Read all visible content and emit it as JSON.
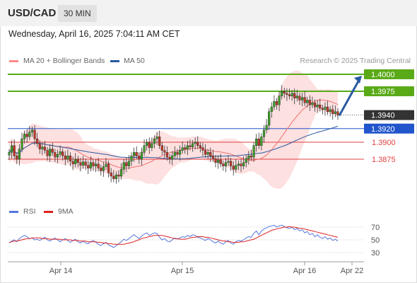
{
  "header": {
    "symbol": "USD/CAD",
    "timeframe": "30 MIN"
  },
  "timestamp": "Wednesday, April 16, 2025 7:04:11 AM CET",
  "legend": {
    "ma20": {
      "label": "MA 20 + Bollinger Bands",
      "color": "#ff8a8a"
    },
    "ma50": {
      "label": "MA 50",
      "color": "#2a5aa0"
    }
  },
  "credit": "Research © 2025 Trading Central",
  "rsi_legend": {
    "rsi": {
      "label": "RSI",
      "color": "#5577dd"
    },
    "ma9": {
      "label": "9MA",
      "color": "#e02020"
    }
  },
  "chart_data": [
    {
      "type": "candlestick",
      "ylim": [
        1.3793,
        1.4068
      ],
      "x_ticks": [
        "Apr 14",
        "Apr 15",
        "Apr 16",
        "Apr 22"
      ],
      "current_price": {
        "value": 1.394,
        "label": "1.3940",
        "color": "#333333"
      },
      "levels": [
        {
          "value": 1.4,
          "label": "1.4000",
          "kind": "target",
          "color": "#5aaa18"
        },
        {
          "value": 1.3975,
          "label": "1.3975",
          "kind": "target",
          "color": "#5aaa18"
        },
        {
          "value": 1.392,
          "label": "1.3920",
          "kind": "pivot",
          "color": "#2255cc"
        },
        {
          "value": 1.39,
          "label": "1.3900",
          "kind": "support",
          "color": "#e04040"
        },
        {
          "value": 1.3875,
          "label": "1.3875",
          "kind": "support",
          "color": "#e04040"
        }
      ],
      "scenario_arrow": {
        "from": 1.3939,
        "to": 1.4,
        "color": "#2a5aa0"
      },
      "series": [
        {
          "name": "Price",
          "close": [
            1.3885,
            1.3895,
            1.388,
            1.3875,
            1.389,
            1.3905,
            1.3912,
            1.3908,
            1.3915,
            1.3918,
            1.3905,
            1.3898,
            1.389,
            1.3893,
            1.3888,
            1.388,
            1.389,
            1.3885,
            1.3878,
            1.3882,
            1.3886,
            1.388,
            1.3875,
            1.388,
            1.3872,
            1.3868,
            1.3875,
            1.387,
            1.3866,
            1.3871,
            1.3866,
            1.3862,
            1.387,
            1.3865,
            1.3868,
            1.3862,
            1.3858,
            1.3864,
            1.3868,
            1.3855,
            1.385,
            1.3846,
            1.3852,
            1.385,
            1.386,
            1.387,
            1.3865,
            1.3872,
            1.388,
            1.3885,
            1.388,
            1.3875,
            1.3885,
            1.3895,
            1.39,
            1.3892,
            1.3898,
            1.3905,
            1.3908,
            1.3895,
            1.3888,
            1.3885,
            1.3878,
            1.3875,
            1.388,
            1.3885,
            1.3882,
            1.3888,
            1.3892,
            1.389,
            1.3895,
            1.3893,
            1.3898,
            1.39,
            1.3895,
            1.3892,
            1.3888,
            1.3882,
            1.3885,
            1.388,
            1.3876,
            1.387,
            1.3874,
            1.3868,
            1.3865,
            1.387,
            1.3872,
            1.3865,
            1.386,
            1.3866,
            1.3868,
            1.3865,
            1.387,
            1.3876,
            1.388,
            1.3878,
            1.3895,
            1.3905,
            1.3895,
            1.3908,
            1.3918,
            1.3925,
            1.3945,
            1.3952,
            1.396,
            1.3955,
            1.3968,
            1.3975,
            1.3972,
            1.397,
            1.3968,
            1.3972,
            1.3965,
            1.3968,
            1.3962,
            1.3966,
            1.3958,
            1.3962,
            1.3955,
            1.3958,
            1.3952,
            1.3955,
            1.395,
            1.3948,
            1.3952,
            1.3945,
            1.3948,
            1.3942,
            1.3945,
            1.394
          ]
        }
      ]
    },
    {
      "type": "line",
      "title": "RSI",
      "ylim": [
        21,
        80
      ],
      "y_ticks": [
        70,
        50,
        30
      ],
      "series": [
        {
          "name": "RSI",
          "values": [
            45,
            48,
            50,
            47,
            52,
            55,
            57,
            55,
            52,
            53,
            50,
            51,
            49,
            52,
            54,
            50,
            48,
            51,
            53,
            50,
            47,
            50,
            52,
            49,
            46,
            49,
            51,
            47,
            45,
            48,
            45,
            44,
            47,
            49,
            46,
            43,
            41,
            44,
            46,
            42,
            40,
            38,
            41,
            44,
            47,
            51,
            49,
            52,
            55,
            58,
            55,
            52,
            56,
            59,
            61,
            57,
            59,
            61,
            60,
            54,
            50,
            52,
            48,
            47,
            50,
            53,
            51,
            53,
            55,
            54,
            57,
            55,
            58,
            57,
            54,
            53,
            51,
            49,
            52,
            50,
            47,
            45,
            48,
            45,
            43,
            47,
            49,
            45,
            43,
            47,
            49,
            48,
            50,
            53,
            55,
            54,
            60,
            64,
            58,
            64,
            67,
            69,
            71,
            72,
            73,
            70,
            72,
            73,
            71,
            69,
            68,
            70,
            66,
            68,
            64,
            66,
            61,
            63,
            58,
            60,
            55,
            58,
            54,
            52,
            55,
            51,
            53,
            49,
            51,
            48
          ]
        },
        {
          "name": "9MA",
          "values": [
            46,
            47,
            48,
            48,
            49,
            50,
            51,
            52,
            52,
            53,
            53,
            53,
            53,
            52,
            52,
            52,
            51,
            51,
            51,
            51,
            51,
            50,
            50,
            50,
            50,
            49,
            49,
            49,
            48,
            48,
            48,
            47,
            47,
            47,
            47,
            46,
            46,
            45,
            45,
            44,
            44,
            43,
            43,
            43,
            43,
            43,
            44,
            45,
            46,
            47,
            49,
            50,
            52,
            53,
            54,
            55,
            56,
            57,
            57,
            57,
            57,
            56,
            55,
            54,
            53,
            52,
            52,
            51,
            51,
            51,
            52,
            53,
            54,
            54,
            55,
            55,
            55,
            54,
            54,
            53,
            52,
            51,
            50,
            49,
            48,
            48,
            47,
            47,
            46,
            46,
            46,
            47,
            47,
            48,
            49,
            50,
            51,
            53,
            55,
            57,
            59,
            61,
            63,
            65,
            66,
            67,
            68,
            69,
            70,
            70,
            71,
            70,
            70,
            69,
            68,
            68,
            67,
            66,
            65,
            64,
            63,
            62,
            61,
            60,
            59,
            58,
            57,
            56,
            55,
            54
          ]
        }
      ]
    }
  ]
}
